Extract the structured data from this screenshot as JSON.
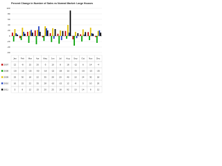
{
  "chart_data": {
    "type": "bar",
    "title": "Percent Change in Number of Sales vs Normal Market: Large Houses",
    "categories": [
      "Jan",
      "Feb",
      "Mar",
      "Apr",
      "May",
      "Jun",
      "Jul",
      "Aug",
      "Sep",
      "Oct",
      "Nov",
      "Dec"
    ],
    "series": [
      {
        "name": "2007",
        "color": "#c00000",
        "values": [
          12,
          -8,
          15,
          20,
          -5,
          10,
          8,
          18,
          -12,
          6,
          14,
          -4
        ]
      },
      {
        "name": "2008",
        "color": "#00a000",
        "values": [
          -20,
          -15,
          -25,
          -30,
          -18,
          -22,
          -28,
          -10,
          -35,
          -20,
          -15,
          -25
        ]
      },
      {
        "name": "2009",
        "color": "#e0c000",
        "values": [
          25,
          30,
          18,
          22,
          35,
          28,
          20,
          40,
          15,
          24,
          30,
          18
        ]
      },
      {
        "name": "2010",
        "color": "#2040c0",
        "values": [
          10,
          15,
          22,
          35,
          28,
          -10,
          -15,
          12,
          -8,
          5,
          10,
          20
        ]
      },
      {
        "name": "2011",
        "color": "#000000",
        "values": [
          5,
          8,
          12,
          15,
          20,
          25,
          18,
          92,
          10,
          14,
          8,
          12
        ]
      }
    ],
    "ylim": [
      -60,
      100
    ],
    "yticks": [
      -60,
      -40,
      -20,
      0,
      20,
      40,
      60,
      80,
      100
    ],
    "grid": true
  }
}
